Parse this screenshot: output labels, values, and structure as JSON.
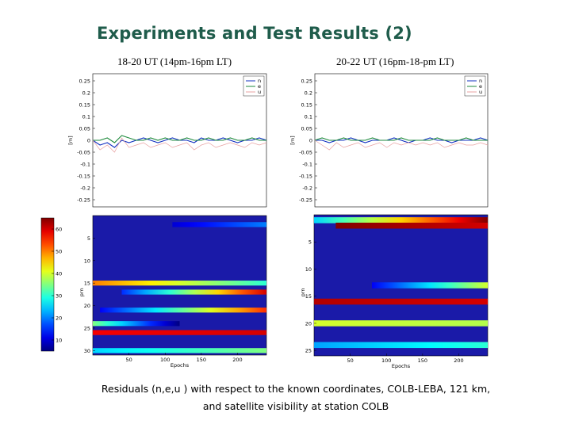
{
  "slide": {
    "title": "Experiments and Test Results (2)",
    "caption_line1": "Residuals (n,e,u ) with respect to the known coordinates, COLB-LEBA, 121 km,",
    "caption_line2": "and satellite visibility at station COLB"
  },
  "colors": {
    "n": "#1030c0",
    "e": "#1e8a3c",
    "u": "#e8a0a0",
    "heatmap_background": "#1a1aa8",
    "title": "#1f5c4b"
  },
  "chart_data": [
    {
      "type": "line",
      "panel": "left",
      "title": "18-20 UT (14pm-16pm LT)",
      "ylabel": "[m]",
      "ylim": [
        -0.28,
        0.28
      ],
      "yticks": [
        0.25,
        0.2,
        0.15,
        0.1,
        0.05,
        0,
        -0.05,
        -0.1,
        -0.15,
        -0.2,
        -0.25
      ],
      "yticklabels": [
        "0.25",
        "0.2",
        "0.15",
        "0.1",
        "0.05",
        "0",
        "-0.05",
        "-0.1",
        "-0.15",
        "-0.2",
        "-0.25"
      ],
      "xlim": [
        0,
        240
      ],
      "grid": false,
      "legend": {
        "placement": "top-right",
        "entries": [
          "n",
          "e",
          "u"
        ]
      },
      "series": [
        {
          "name": "n",
          "color": "#1030c0",
          "x": [
            0,
            10,
            20,
            30,
            40,
            50,
            60,
            70,
            80,
            90,
            100,
            110,
            120,
            130,
            140,
            150,
            160,
            170,
            180,
            190,
            200,
            210,
            220,
            230,
            240
          ],
          "values": [
            0.0,
            -0.02,
            -0.01,
            -0.03,
            0.0,
            -0.01,
            0.0,
            0.01,
            0.0,
            -0.01,
            0.0,
            0.01,
            0.0,
            0.0,
            -0.01,
            0.01,
            0.0,
            0.0,
            0.01,
            0.0,
            -0.01,
            0.0,
            0.0,
            0.01,
            0.0
          ]
        },
        {
          "name": "e",
          "color": "#1e8a3c",
          "x": [
            0,
            10,
            20,
            30,
            40,
            50,
            60,
            70,
            80,
            90,
            100,
            110,
            120,
            130,
            140,
            150,
            160,
            170,
            180,
            190,
            200,
            210,
            220,
            230,
            240
          ],
          "values": [
            0.0,
            0.0,
            0.01,
            -0.01,
            0.02,
            0.01,
            0.0,
            0.0,
            0.01,
            0.0,
            0.01,
            0.0,
            0.0,
            0.01,
            0.0,
            0.0,
            0.01,
            0.0,
            0.0,
            0.01,
            0.0,
            0.0,
            0.01,
            0.0,
            0.0
          ]
        },
        {
          "name": "u",
          "color": "#e8a0a0",
          "x": [
            0,
            10,
            20,
            30,
            40,
            50,
            60,
            70,
            80,
            90,
            100,
            110,
            120,
            130,
            140,
            150,
            160,
            170,
            180,
            190,
            200,
            210,
            220,
            230,
            240
          ],
          "values": [
            0.0,
            -0.04,
            -0.02,
            -0.05,
            0.01,
            -0.03,
            -0.02,
            -0.01,
            -0.03,
            -0.02,
            -0.01,
            -0.03,
            -0.02,
            -0.01,
            -0.04,
            -0.02,
            -0.01,
            -0.03,
            -0.02,
            -0.01,
            -0.02,
            -0.03,
            -0.01,
            -0.02,
            -0.01
          ]
        }
      ]
    },
    {
      "type": "line",
      "panel": "right",
      "title": "20-22 UT (16pm-18-pm LT)",
      "ylabel": "[m]",
      "ylim": [
        -0.28,
        0.28
      ],
      "yticks": [
        0.25,
        0.2,
        0.15,
        0.1,
        0.05,
        0,
        -0.05,
        -0.1,
        -0.15,
        -0.2,
        -0.25
      ],
      "yticklabels": [
        "0.25",
        "0.2",
        "0.15",
        "0.1",
        "0.05",
        "0",
        "-0.05",
        "-0.1",
        "-0.15",
        "-0.2",
        "-0.25"
      ],
      "xlim": [
        0,
        240
      ],
      "grid": false,
      "legend": {
        "placement": "top-right",
        "entries": [
          "n",
          "e",
          "u"
        ]
      },
      "series": [
        {
          "name": "n",
          "color": "#1030c0",
          "x": [
            0,
            10,
            20,
            30,
            40,
            50,
            60,
            70,
            80,
            90,
            100,
            110,
            120,
            130,
            140,
            150,
            160,
            170,
            180,
            190,
            200,
            210,
            220,
            230,
            240
          ],
          "values": [
            0.0,
            0.0,
            -0.01,
            0.0,
            0.0,
            0.01,
            0.0,
            -0.01,
            0.0,
            0.0,
            0.0,
            0.01,
            0.0,
            -0.01,
            0.0,
            0.0,
            0.01,
            0.0,
            0.0,
            -0.01,
            0.0,
            0.0,
            0.0,
            0.01,
            0.0
          ]
        },
        {
          "name": "e",
          "color": "#1e8a3c",
          "x": [
            0,
            10,
            20,
            30,
            40,
            50,
            60,
            70,
            80,
            90,
            100,
            110,
            120,
            130,
            140,
            150,
            160,
            170,
            180,
            190,
            200,
            210,
            220,
            230,
            240
          ],
          "values": [
            0.0,
            0.01,
            0.0,
            0.0,
            0.01,
            0.0,
            0.0,
            0.0,
            0.01,
            0.0,
            0.0,
            0.0,
            0.01,
            0.0,
            0.0,
            0.0,
            0.0,
            0.01,
            0.0,
            0.0,
            0.0,
            0.01,
            0.0,
            0.0,
            0.0
          ]
        },
        {
          "name": "u",
          "color": "#e8a0a0",
          "x": [
            0,
            10,
            20,
            30,
            40,
            50,
            60,
            70,
            80,
            90,
            100,
            110,
            120,
            130,
            140,
            150,
            160,
            170,
            180,
            190,
            200,
            210,
            220,
            230,
            240
          ],
          "values": [
            0.0,
            -0.02,
            -0.04,
            -0.01,
            -0.03,
            -0.02,
            -0.01,
            -0.03,
            -0.02,
            -0.01,
            -0.03,
            -0.01,
            -0.02,
            -0.01,
            -0.02,
            -0.01,
            -0.02,
            -0.01,
            -0.03,
            -0.02,
            -0.01,
            -0.02,
            -0.02,
            -0.01,
            -0.02
          ]
        }
      ]
    },
    {
      "type": "heatmap",
      "panel": "left",
      "title": "",
      "xlabel": "Epochs",
      "ylabel": "prn",
      "xlim": [
        0,
        240
      ],
      "ylim": [
        0,
        31
      ],
      "xticks": [
        50,
        100,
        150,
        200
      ],
      "xticklabels": [
        "50",
        "100",
        "150",
        "200"
      ],
      "yticks": [
        5,
        10,
        15,
        20,
        25,
        30
      ],
      "yticklabels": [
        "5",
        "10",
        "15",
        "20",
        "25",
        "30"
      ],
      "colorbar": {
        "ticks": [
          60,
          50,
          40,
          30,
          20,
          10
        ],
        "ticklabels": [
          "60",
          "50",
          "40",
          "30",
          "20",
          "10"
        ],
        "range": [
          5,
          65
        ]
      },
      "rows": [
        {
          "prn": 2,
          "start": 110,
          "end": 240,
          "from": 10,
          "to": 20
        },
        {
          "prn": 15,
          "start": 0,
          "end": 240,
          "from": 50,
          "to": 30
        },
        {
          "prn": 17,
          "start": 40,
          "end": 240,
          "from": 15,
          "to": 60
        },
        {
          "prn": 21,
          "start": 10,
          "end": 240,
          "from": 12,
          "to": 55
        },
        {
          "prn": 24,
          "start": 0,
          "end": 120,
          "from": 35,
          "to": 5
        },
        {
          "prn": 26,
          "start": 0,
          "end": 240,
          "from": 58,
          "to": 60
        },
        {
          "prn": 30,
          "start": 0,
          "end": 240,
          "from": 25,
          "to": 35
        }
      ]
    },
    {
      "type": "heatmap",
      "panel": "right",
      "title": "",
      "xlabel": "Epochs",
      "ylabel": "prn",
      "xlim": [
        0,
        240
      ],
      "ylim": [
        0,
        26
      ],
      "xticks": [
        50,
        100,
        150,
        200
      ],
      "xticklabels": [
        "50",
        "100",
        "150",
        "200"
      ],
      "yticks": [
        5,
        10,
        15,
        20,
        25
      ],
      "yticklabels": [
        "5",
        "10",
        "15",
        "20",
        "25"
      ],
      "rows": [
        {
          "prn": 1,
          "start": 0,
          "end": 240,
          "from": 25,
          "to": 65
        },
        {
          "prn": 2,
          "start": 30,
          "end": 240,
          "from": 65,
          "to": 60
        },
        {
          "prn": 13,
          "start": 80,
          "end": 240,
          "from": 12,
          "to": 40
        },
        {
          "prn": 16,
          "start": 0,
          "end": 240,
          "from": 62,
          "to": 60
        },
        {
          "prn": 20,
          "start": 0,
          "end": 240,
          "from": 40,
          "to": 38
        },
        {
          "prn": 24,
          "start": 0,
          "end": 240,
          "from": 22,
          "to": 30
        }
      ]
    }
  ],
  "labels": {
    "epochs": "Epochs",
    "prn": "prn",
    "meters": "[m]"
  }
}
